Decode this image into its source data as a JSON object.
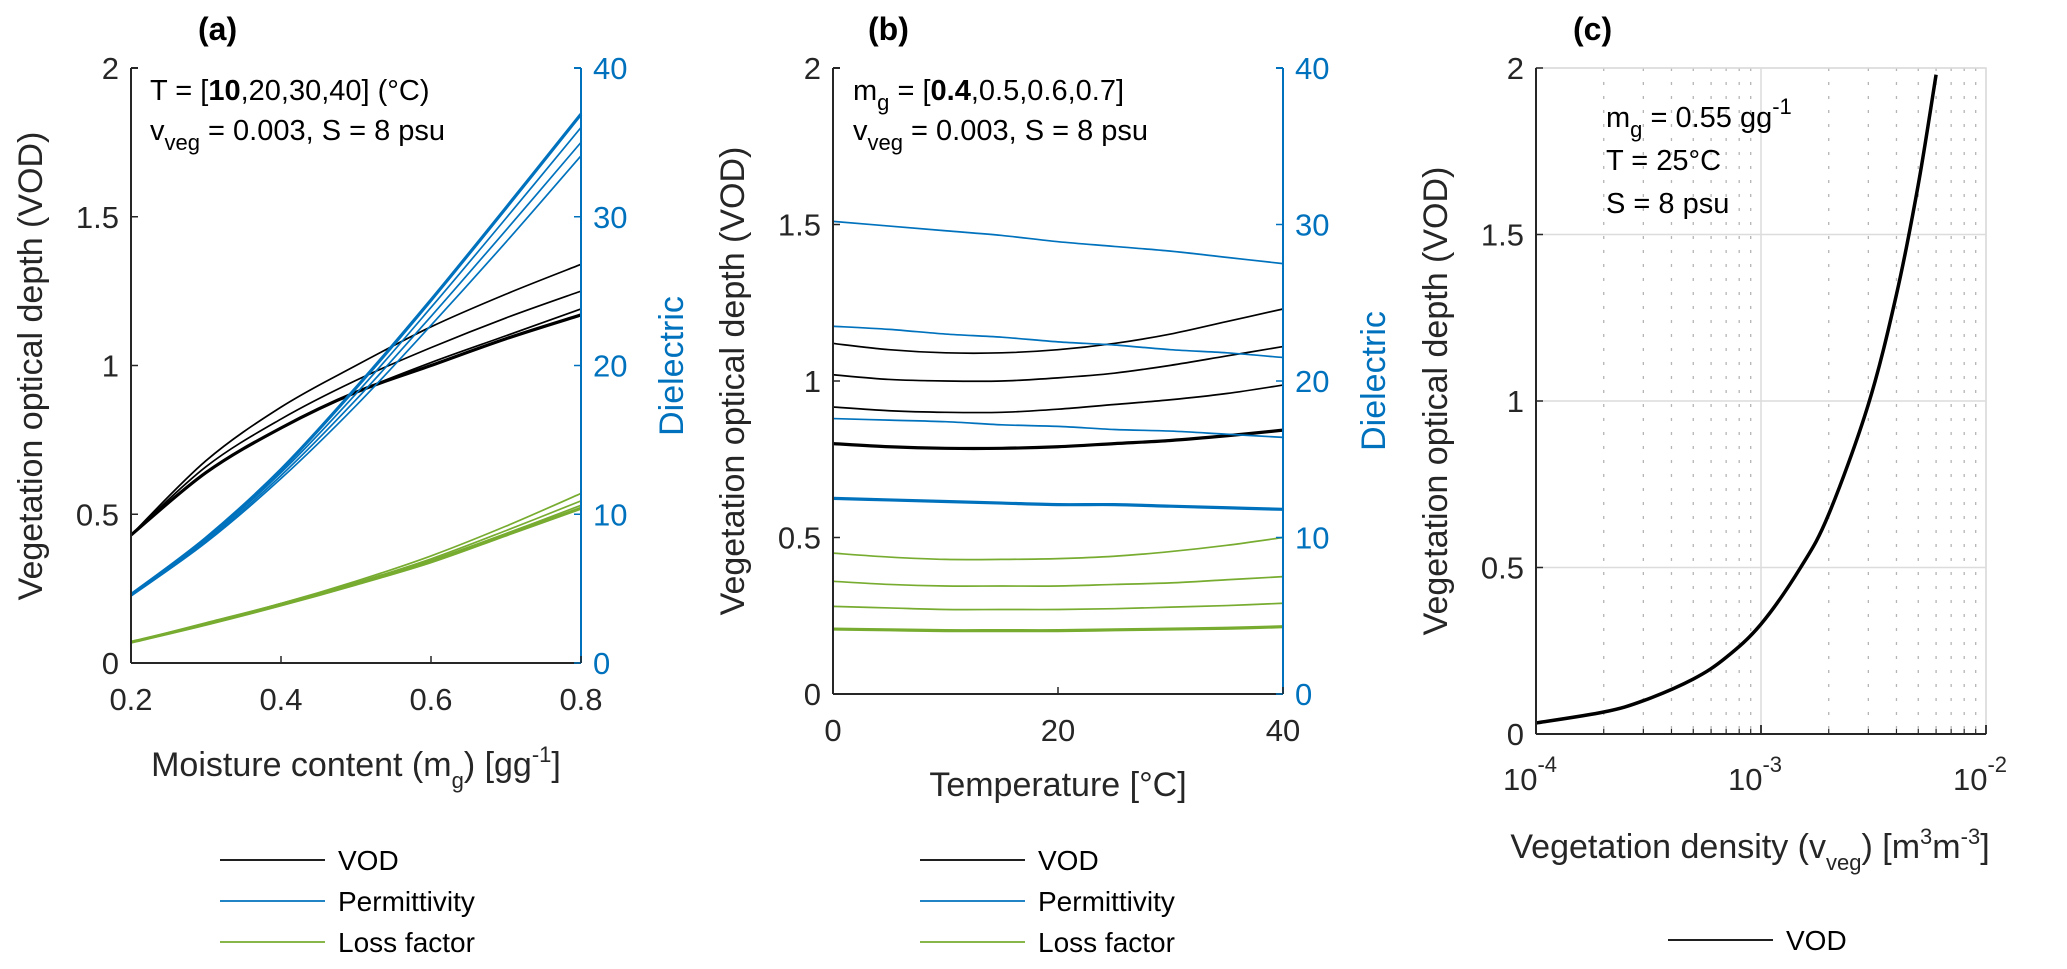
{
  "chart_data": [
    {
      "panel": "(a)",
      "type": "line",
      "xlabel": "Moisture content (m",
      "xlabel_sub": "g",
      "xlabel_tail": ") [gg",
      "xlabel_sup": "-1",
      "xlabel_end": "]",
      "ylabel": "Vegetation optical depth (VOD)",
      "ylabel_right": "Dielectric",
      "xlim": [
        0.2,
        0.8
      ],
      "ylim": [
        0,
        2
      ],
      "ylim_right": [
        0,
        40
      ],
      "xticks": [
        "0.2",
        "0.4",
        "0.6",
        "0.8"
      ],
      "xtick_values": [
        0.2,
        0.4,
        0.6,
        0.8
      ],
      "yticks": [
        "0",
        "0.5",
        "1",
        "1.5",
        "2"
      ],
      "ytick_values": [
        0,
        0.5,
        1,
        1.5,
        2
      ],
      "yticks_right": [
        "0",
        "10",
        "20",
        "30",
        "40"
      ],
      "ytick_right_values": [
        0,
        10,
        20,
        30,
        40
      ],
      "grid": false,
      "annotation": {
        "line1_prefix": "T = [",
        "line1_bold": "10",
        "line1_suffix": ",20,30,40] (°C)",
        "line2_main": "v",
        "line2_sub": "veg",
        "line2_suffix": " = 0.003, S = 8 psu"
      },
      "x": [
        0.2,
        0.3,
        0.4,
        0.5,
        0.6,
        0.7,
        0.8
      ],
      "series": [
        {
          "name": "VOD",
          "param": "T=10",
          "axis": "left",
          "color": "#000000",
          "bold": true,
          "values": [
            0.43,
            0.64,
            0.79,
            0.91,
            1.0,
            1.09,
            1.17
          ]
        },
        {
          "name": "VOD",
          "param": "T=20",
          "axis": "left",
          "color": "#000000",
          "bold": false,
          "values": [
            0.43,
            0.64,
            0.79,
            0.91,
            1.01,
            1.1,
            1.19
          ]
        },
        {
          "name": "VOD",
          "param": "T=30",
          "axis": "left",
          "color": "#000000",
          "bold": false,
          "values": [
            0.43,
            0.66,
            0.82,
            0.95,
            1.06,
            1.16,
            1.25
          ]
        },
        {
          "name": "VOD",
          "param": "T=40",
          "axis": "left",
          "color": "#000000",
          "bold": false,
          "values": [
            0.43,
            0.68,
            0.86,
            1.0,
            1.13,
            1.24,
            1.34
          ]
        },
        {
          "name": "Permittivity",
          "param": "T=10",
          "axis": "right",
          "color": "#0072bd",
          "bold": true,
          "values": [
            4.6,
            8.4,
            13.0,
            18.5,
            24.4,
            30.6,
            36.9
          ]
        },
        {
          "name": "Permittivity",
          "param": "T=20",
          "axis": "right",
          "color": "#0072bd",
          "bold": false,
          "values": [
            4.6,
            8.3,
            12.8,
            18.1,
            23.9,
            29.9,
            36.0
          ]
        },
        {
          "name": "Permittivity",
          "param": "T=30",
          "axis": "right",
          "color": "#0072bd",
          "bold": false,
          "values": [
            4.6,
            8.2,
            12.6,
            17.7,
            23.3,
            29.1,
            35.0
          ]
        },
        {
          "name": "Permittivity",
          "param": "T=40",
          "axis": "right",
          "color": "#0072bd",
          "bold": false,
          "values": [
            4.5,
            8.1,
            12.4,
            17.3,
            22.7,
            28.3,
            34.1
          ]
        },
        {
          "name": "Loss factor",
          "param": "T=10",
          "axis": "right",
          "color": "#77ac30",
          "bold": true,
          "values": [
            1.4,
            2.6,
            3.9,
            5.3,
            6.8,
            8.6,
            10.4
          ]
        },
        {
          "name": "Loss factor",
          "param": "T=20",
          "axis": "right",
          "color": "#77ac30",
          "bold": false,
          "values": [
            1.4,
            2.6,
            3.9,
            5.3,
            6.9,
            8.7,
            10.6
          ]
        },
        {
          "name": "Loss factor",
          "param": "T=30",
          "axis": "right",
          "color": "#77ac30",
          "bold": false,
          "values": [
            1.4,
            2.6,
            4.0,
            5.4,
            7.0,
            8.9,
            10.9
          ]
        },
        {
          "name": "Loss factor",
          "param": "T=40",
          "axis": "right",
          "color": "#77ac30",
          "bold": false,
          "values": [
            1.4,
            2.7,
            4.0,
            5.5,
            7.2,
            9.2,
            11.4
          ]
        }
      ],
      "legend": [
        "VOD",
        "Permittivity",
        "Loss factor"
      ],
      "legend_position": "bottom"
    },
    {
      "panel": "(b)",
      "type": "line",
      "xlabel": "Temperature [°C]",
      "ylabel": "Vegetation optical depth (VOD)",
      "ylabel_right": "Dielectric",
      "xlim": [
        0,
        40
      ],
      "ylim": [
        0,
        2
      ],
      "ylim_right": [
        0,
        40
      ],
      "xticks": [
        "0",
        "20",
        "40"
      ],
      "xtick_values": [
        0,
        20,
        40
      ],
      "yticks": [
        "0",
        "0.5",
        "1",
        "1.5",
        "2"
      ],
      "ytick_values": [
        0,
        0.5,
        1,
        1.5,
        2
      ],
      "yticks_right": [
        "0",
        "10",
        "20",
        "30",
        "40"
      ],
      "ytick_right_values": [
        0,
        10,
        20,
        30,
        40
      ],
      "grid": false,
      "annotation": {
        "line1_main": "m",
        "line1_sub": "g",
        "line1_prefix": " = [",
        "line1_bold": "0.4",
        "line1_suffix": ",0.5,0.6,0.7]",
        "line2_main": "v",
        "line2_sub": "veg",
        "line2_suffix": " = 0.003, S = 8 psu"
      },
      "x": [
        0,
        5,
        10,
        15,
        20,
        25,
        30,
        35,
        40
      ],
      "series": [
        {
          "name": "VOD",
          "param": "mg=0.4",
          "axis": "left",
          "color": "#000000",
          "bold": true,
          "values": [
            0.8,
            0.79,
            0.785,
            0.785,
            0.79,
            0.8,
            0.81,
            0.825,
            0.843
          ]
        },
        {
          "name": "VOD",
          "param": "mg=0.5",
          "axis": "left",
          "color": "#000000",
          "bold": false,
          "values": [
            0.917,
            0.905,
            0.9,
            0.9,
            0.91,
            0.925,
            0.94,
            0.96,
            0.987
          ]
        },
        {
          "name": "VOD",
          "param": "mg=0.6",
          "axis": "left",
          "color": "#000000",
          "bold": false,
          "values": [
            1.02,
            1.005,
            1.0,
            1.0,
            1.01,
            1.025,
            1.05,
            1.08,
            1.11
          ]
        },
        {
          "name": "VOD",
          "param": "mg=0.7",
          "axis": "left",
          "color": "#000000",
          "bold": false,
          "values": [
            1.12,
            1.1,
            1.09,
            1.09,
            1.1,
            1.12,
            1.15,
            1.19,
            1.23
          ]
        },
        {
          "name": "Permittivity",
          "param": "mg=0.4",
          "axis": "right",
          "color": "#0072bd",
          "bold": true,
          "values": [
            12.5,
            12.4,
            12.3,
            12.2,
            12.1,
            12.1,
            12.0,
            11.9,
            11.8
          ]
        },
        {
          "name": "Permittivity",
          "param": "mg=0.5",
          "axis": "right",
          "color": "#0072bd",
          "bold": false,
          "values": [
            17.6,
            17.5,
            17.4,
            17.2,
            17.1,
            16.9,
            16.8,
            16.6,
            16.4
          ]
        },
        {
          "name": "Permittivity",
          "param": "mg=0.6",
          "axis": "right",
          "color": "#0072bd",
          "bold": false,
          "values": [
            23.5,
            23.3,
            23.0,
            22.8,
            22.5,
            22.3,
            22.0,
            21.8,
            21.5
          ]
        },
        {
          "name": "Permittivity",
          "param": "mg=0.7",
          "axis": "right",
          "color": "#0072bd",
          "bold": false,
          "values": [
            30.2,
            29.9,
            29.6,
            29.3,
            28.9,
            28.6,
            28.3,
            27.9,
            27.5
          ]
        },
        {
          "name": "Loss factor",
          "param": "mg=0.4",
          "axis": "right",
          "color": "#77ac30",
          "bold": true,
          "values": [
            4.15,
            4.1,
            4.05,
            4.05,
            4.05,
            4.1,
            4.15,
            4.2,
            4.3
          ]
        },
        {
          "name": "Loss factor",
          "param": "mg=0.5",
          "axis": "right",
          "color": "#77ac30",
          "bold": false,
          "values": [
            5.6,
            5.5,
            5.4,
            5.4,
            5.4,
            5.45,
            5.55,
            5.65,
            5.8
          ]
        },
        {
          "name": "Loss factor",
          "param": "mg=0.6",
          "axis": "right",
          "color": "#77ac30",
          "bold": false,
          "values": [
            7.2,
            7.0,
            6.9,
            6.9,
            6.9,
            7.0,
            7.1,
            7.3,
            7.5
          ]
        },
        {
          "name": "Loss factor",
          "param": "mg=0.7",
          "axis": "right",
          "color": "#77ac30",
          "bold": false,
          "values": [
            9.0,
            8.75,
            8.6,
            8.6,
            8.65,
            8.8,
            9.1,
            9.5,
            10.0
          ]
        }
      ],
      "legend": [
        "VOD",
        "Permittivity",
        "Loss factor"
      ],
      "legend_position": "bottom"
    },
    {
      "panel": "(c)",
      "type": "line",
      "xscale": "log",
      "xlabel": "Vegetation density (v",
      "xlabel_sub": "veg",
      "xlabel_tail": ") [m",
      "xlabel_sup": "3",
      "xlabel_mid": "m",
      "xlabel_sup2": "-3",
      "xlabel_end": "]",
      "ylabel": "Vegetation optical depth (VOD)",
      "xlim": [
        0.0001,
        0.01
      ],
      "ylim": [
        0,
        2
      ],
      "xticks": [
        {
          "base": "10",
          "exp": "-4"
        },
        {
          "base": "10",
          "exp": "-3"
        },
        {
          "base": "10",
          "exp": "-2"
        }
      ],
      "xtick_values": [
        0.0001,
        0.001,
        0.01
      ],
      "yticks": [
        "0",
        "0.5",
        "1",
        "1.5",
        "2"
      ],
      "ytick_values": [
        0,
        0.5,
        1,
        1.5,
        2
      ],
      "grid": true,
      "minor_grid": true,
      "annotation": {
        "line1_main": "m",
        "line1_sub": "g",
        "line1_suffix": " = 0.55 gg",
        "line1_sup": "-1",
        "line2": "T = 25°C",
        "line3": "S = 8 psu"
      },
      "x": [
        0.0001,
        0.0002,
        0.0003,
        0.0005,
        0.0007,
        0.001,
        0.0015,
        0.002,
        0.003,
        0.004,
        0.005,
        0.006
      ],
      "series": [
        {
          "name": "VOD",
          "color": "#000000",
          "values": [
            0.033,
            0.066,
            0.1,
            0.165,
            0.23,
            0.33,
            0.5,
            0.66,
            0.99,
            1.32,
            1.65,
            1.98
          ]
        }
      ],
      "legend": [
        "VOD"
      ],
      "legend_position": "bottom"
    }
  ]
}
